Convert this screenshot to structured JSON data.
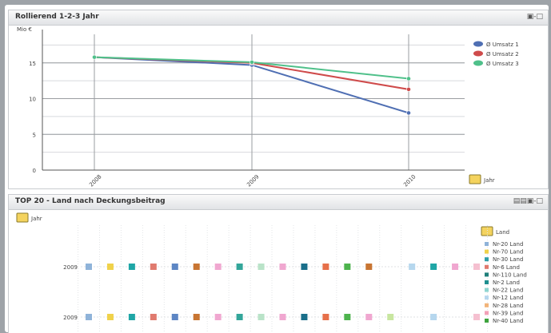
{
  "top_panel": {
    "title": "Rollierend 1-2-3 Jahr",
    "icons": "▣-□"
  },
  "bottom_panel": {
    "title": "TOP 20 - Land nach Deckungsbeitrag",
    "icons": "▤▤▣-□"
  },
  "chart_data": [
    {
      "type": "line",
      "title": "Rollierend 1-2-3 Jahr",
      "ylabel": "Mio €",
      "xlabel": "Jahr",
      "x": [
        "2008",
        "2009",
        "2010"
      ],
      "yticks": [
        0,
        5,
        10,
        15
      ],
      "ylim": [
        0,
        19
      ],
      "grid": true,
      "legend_position": "right",
      "series": [
        {
          "name": "Ø Umsatz 1",
          "color": "#4f6fb3",
          "values": [
            15.8,
            14.7,
            8.0
          ]
        },
        {
          "name": "Ø Umsatz 2",
          "color": "#cf4b4b",
          "values": [
            15.8,
            15.0,
            11.3
          ]
        },
        {
          "name": "Ø Umsatz 3",
          "color": "#4fc08a",
          "values": [
            15.8,
            15.1,
            12.8
          ]
        }
      ]
    },
    {
      "type": "scatter",
      "title": "TOP 20 - Land nach Deckungsbeitrag",
      "dimension_button": "Jahr",
      "legend_button": "Land",
      "legend_position": "right",
      "rows": [
        "2009",
        "2009"
      ],
      "legend_entries": [
        {
          "name": "Nr-20 Land",
          "color": "#8fb3d9"
        },
        {
          "name": "Nr-70 Land",
          "color": "#f0d24a"
        },
        {
          "name": "Nr-30 Land",
          "color": "#2f9fa8"
        },
        {
          "name": "Nr-6 Land",
          "color": "#e07a6e"
        },
        {
          "name": "Nr-110 Land",
          "color": "#1f7f7a"
        },
        {
          "name": "Nr-2 Land",
          "color": "#1f8f8f"
        },
        {
          "name": "Nr-22 Land",
          "color": "#8fd5d0"
        },
        {
          "name": "Nr-12 Land",
          "color": "#b6d7ee"
        },
        {
          "name": "Nr-28 Land",
          "color": "#f2b47a"
        },
        {
          "name": "Nr-39 Land",
          "color": "#f3a1b8"
        },
        {
          "name": "Nr-40 Land",
          "color": "#3da33d"
        }
      ],
      "row_markers": [
        [
          "#8fb3d9",
          "#f0d24a",
          "#1fa6a6",
          "#e07a6e",
          "#5d86c4",
          "#c87532",
          "#f0a7d0",
          "#33a69a",
          "#b9e3c8",
          "#f0a7d0",
          "#1a6f8a",
          "#e6704a",
          "#4db34d",
          "#c87532",
          "",
          "#b6d7ee",
          "#1fa6a6",
          "#f0a7d0",
          "#f5c0d0"
        ],
        [
          "#8fb3d9",
          "#f0d24a",
          "#1fa6a6",
          "#e07a6e",
          "#5d86c4",
          "#c87532",
          "#f0a7d0",
          "#33a69a",
          "#b9e3c8",
          "#f0a7d0",
          "#1a6f8a",
          "#e6704a",
          "#4db34d",
          "#f0a7d0",
          "#c8e6a0",
          "",
          "#b6d7ee",
          "",
          "#f5c0d0"
        ]
      ]
    }
  ]
}
